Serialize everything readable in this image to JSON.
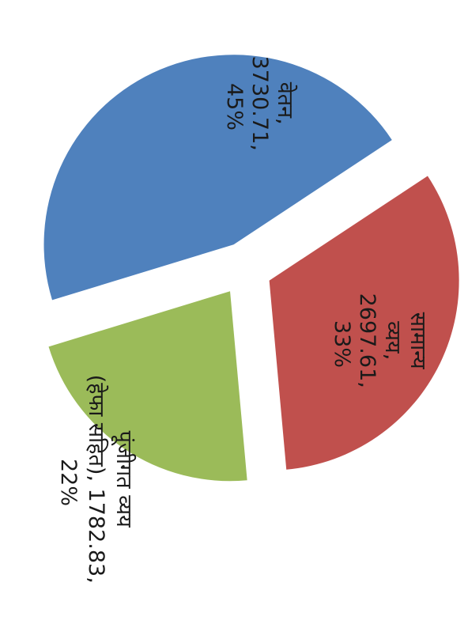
{
  "chart_data": {
    "type": "pie",
    "title": "",
    "rotation_deg": 90,
    "slices": [
      {
        "label": "वेतन",
        "value": 3730.71,
        "percent": "45%",
        "color": "#4f81bd"
      },
      {
        "label": "सामान्य व्यय",
        "value": 2697.61,
        "percent": "33%",
        "color": "#c0504d"
      },
      {
        "label": "पूंजीगत व्यय (हेफा सहित)",
        "value": 1782.83,
        "percent": "22%",
        "color": "#9bbb59"
      }
    ]
  },
  "labels": [
    {
      "lines": [
        "वेतन,",
        "3730.71,",
        "45%"
      ]
    },
    {
      "lines": [
        "सामान्य",
        "व्यय,",
        "2697.61,",
        "33%"
      ]
    },
    {
      "lines": [
        "पूंजीगत व्यय",
        "(हेफा सहित), 1782.83,",
        "22%"
      ]
    }
  ]
}
